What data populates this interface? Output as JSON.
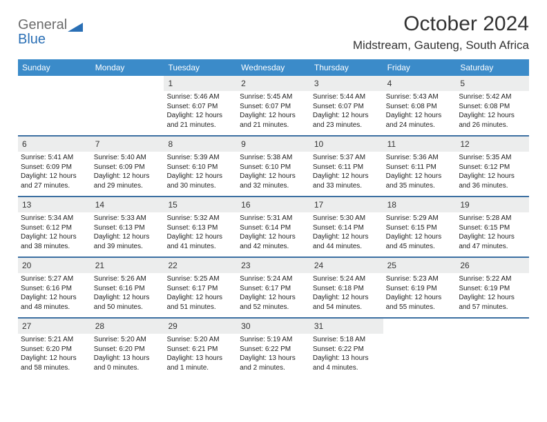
{
  "brand": {
    "general": "General",
    "blue": "Blue",
    "tri_color": "#2a6fb5"
  },
  "header": {
    "month_title": "October 2024",
    "location": "Midstream, Gauteng, South Africa"
  },
  "colors": {
    "header_bg": "#3b8bc9",
    "week_divider": "#3b6fa1",
    "daynum_bg": "#eceded",
    "text": "#333333"
  },
  "day_names": [
    "Sunday",
    "Monday",
    "Tuesday",
    "Wednesday",
    "Thursday",
    "Friday",
    "Saturday"
  ],
  "weeks": [
    [
      {
        "empty": true
      },
      {
        "empty": true
      },
      {
        "num": "1",
        "sunrise": "Sunrise: 5:46 AM",
        "sunset": "Sunset: 6:07 PM",
        "day1": "Daylight: 12 hours",
        "day2": "and 21 minutes."
      },
      {
        "num": "2",
        "sunrise": "Sunrise: 5:45 AM",
        "sunset": "Sunset: 6:07 PM",
        "day1": "Daylight: 12 hours",
        "day2": "and 21 minutes."
      },
      {
        "num": "3",
        "sunrise": "Sunrise: 5:44 AM",
        "sunset": "Sunset: 6:07 PM",
        "day1": "Daylight: 12 hours",
        "day2": "and 23 minutes."
      },
      {
        "num": "4",
        "sunrise": "Sunrise: 5:43 AM",
        "sunset": "Sunset: 6:08 PM",
        "day1": "Daylight: 12 hours",
        "day2": "and 24 minutes."
      },
      {
        "num": "5",
        "sunrise": "Sunrise: 5:42 AM",
        "sunset": "Sunset: 6:08 PM",
        "day1": "Daylight: 12 hours",
        "day2": "and 26 minutes."
      }
    ],
    [
      {
        "num": "6",
        "sunrise": "Sunrise: 5:41 AM",
        "sunset": "Sunset: 6:09 PM",
        "day1": "Daylight: 12 hours",
        "day2": "and 27 minutes."
      },
      {
        "num": "7",
        "sunrise": "Sunrise: 5:40 AM",
        "sunset": "Sunset: 6:09 PM",
        "day1": "Daylight: 12 hours",
        "day2": "and 29 minutes."
      },
      {
        "num": "8",
        "sunrise": "Sunrise: 5:39 AM",
        "sunset": "Sunset: 6:10 PM",
        "day1": "Daylight: 12 hours",
        "day2": "and 30 minutes."
      },
      {
        "num": "9",
        "sunrise": "Sunrise: 5:38 AM",
        "sunset": "Sunset: 6:10 PM",
        "day1": "Daylight: 12 hours",
        "day2": "and 32 minutes."
      },
      {
        "num": "10",
        "sunrise": "Sunrise: 5:37 AM",
        "sunset": "Sunset: 6:11 PM",
        "day1": "Daylight: 12 hours",
        "day2": "and 33 minutes."
      },
      {
        "num": "11",
        "sunrise": "Sunrise: 5:36 AM",
        "sunset": "Sunset: 6:11 PM",
        "day1": "Daylight: 12 hours",
        "day2": "and 35 minutes."
      },
      {
        "num": "12",
        "sunrise": "Sunrise: 5:35 AM",
        "sunset": "Sunset: 6:12 PM",
        "day1": "Daylight: 12 hours",
        "day2": "and 36 minutes."
      }
    ],
    [
      {
        "num": "13",
        "sunrise": "Sunrise: 5:34 AM",
        "sunset": "Sunset: 6:12 PM",
        "day1": "Daylight: 12 hours",
        "day2": "and 38 minutes."
      },
      {
        "num": "14",
        "sunrise": "Sunrise: 5:33 AM",
        "sunset": "Sunset: 6:13 PM",
        "day1": "Daylight: 12 hours",
        "day2": "and 39 minutes."
      },
      {
        "num": "15",
        "sunrise": "Sunrise: 5:32 AM",
        "sunset": "Sunset: 6:13 PM",
        "day1": "Daylight: 12 hours",
        "day2": "and 41 minutes."
      },
      {
        "num": "16",
        "sunrise": "Sunrise: 5:31 AM",
        "sunset": "Sunset: 6:14 PM",
        "day1": "Daylight: 12 hours",
        "day2": "and 42 minutes."
      },
      {
        "num": "17",
        "sunrise": "Sunrise: 5:30 AM",
        "sunset": "Sunset: 6:14 PM",
        "day1": "Daylight: 12 hours",
        "day2": "and 44 minutes."
      },
      {
        "num": "18",
        "sunrise": "Sunrise: 5:29 AM",
        "sunset": "Sunset: 6:15 PM",
        "day1": "Daylight: 12 hours",
        "day2": "and 45 minutes."
      },
      {
        "num": "19",
        "sunrise": "Sunrise: 5:28 AM",
        "sunset": "Sunset: 6:15 PM",
        "day1": "Daylight: 12 hours",
        "day2": "and 47 minutes."
      }
    ],
    [
      {
        "num": "20",
        "sunrise": "Sunrise: 5:27 AM",
        "sunset": "Sunset: 6:16 PM",
        "day1": "Daylight: 12 hours",
        "day2": "and 48 minutes."
      },
      {
        "num": "21",
        "sunrise": "Sunrise: 5:26 AM",
        "sunset": "Sunset: 6:16 PM",
        "day1": "Daylight: 12 hours",
        "day2": "and 50 minutes."
      },
      {
        "num": "22",
        "sunrise": "Sunrise: 5:25 AM",
        "sunset": "Sunset: 6:17 PM",
        "day1": "Daylight: 12 hours",
        "day2": "and 51 minutes."
      },
      {
        "num": "23",
        "sunrise": "Sunrise: 5:24 AM",
        "sunset": "Sunset: 6:17 PM",
        "day1": "Daylight: 12 hours",
        "day2": "and 52 minutes."
      },
      {
        "num": "24",
        "sunrise": "Sunrise: 5:24 AM",
        "sunset": "Sunset: 6:18 PM",
        "day1": "Daylight: 12 hours",
        "day2": "and 54 minutes."
      },
      {
        "num": "25",
        "sunrise": "Sunrise: 5:23 AM",
        "sunset": "Sunset: 6:19 PM",
        "day1": "Daylight: 12 hours",
        "day2": "and 55 minutes."
      },
      {
        "num": "26",
        "sunrise": "Sunrise: 5:22 AM",
        "sunset": "Sunset: 6:19 PM",
        "day1": "Daylight: 12 hours",
        "day2": "and 57 minutes."
      }
    ],
    [
      {
        "num": "27",
        "sunrise": "Sunrise: 5:21 AM",
        "sunset": "Sunset: 6:20 PM",
        "day1": "Daylight: 12 hours",
        "day2": "and 58 minutes."
      },
      {
        "num": "28",
        "sunrise": "Sunrise: 5:20 AM",
        "sunset": "Sunset: 6:20 PM",
        "day1": "Daylight: 13 hours",
        "day2": "and 0 minutes."
      },
      {
        "num": "29",
        "sunrise": "Sunrise: 5:20 AM",
        "sunset": "Sunset: 6:21 PM",
        "day1": "Daylight: 13 hours",
        "day2": "and 1 minute."
      },
      {
        "num": "30",
        "sunrise": "Sunrise: 5:19 AM",
        "sunset": "Sunset: 6:22 PM",
        "day1": "Daylight: 13 hours",
        "day2": "and 2 minutes."
      },
      {
        "num": "31",
        "sunrise": "Sunrise: 5:18 AM",
        "sunset": "Sunset: 6:22 PM",
        "day1": "Daylight: 13 hours",
        "day2": "and 4 minutes."
      },
      {
        "empty": true
      },
      {
        "empty": true
      }
    ]
  ]
}
